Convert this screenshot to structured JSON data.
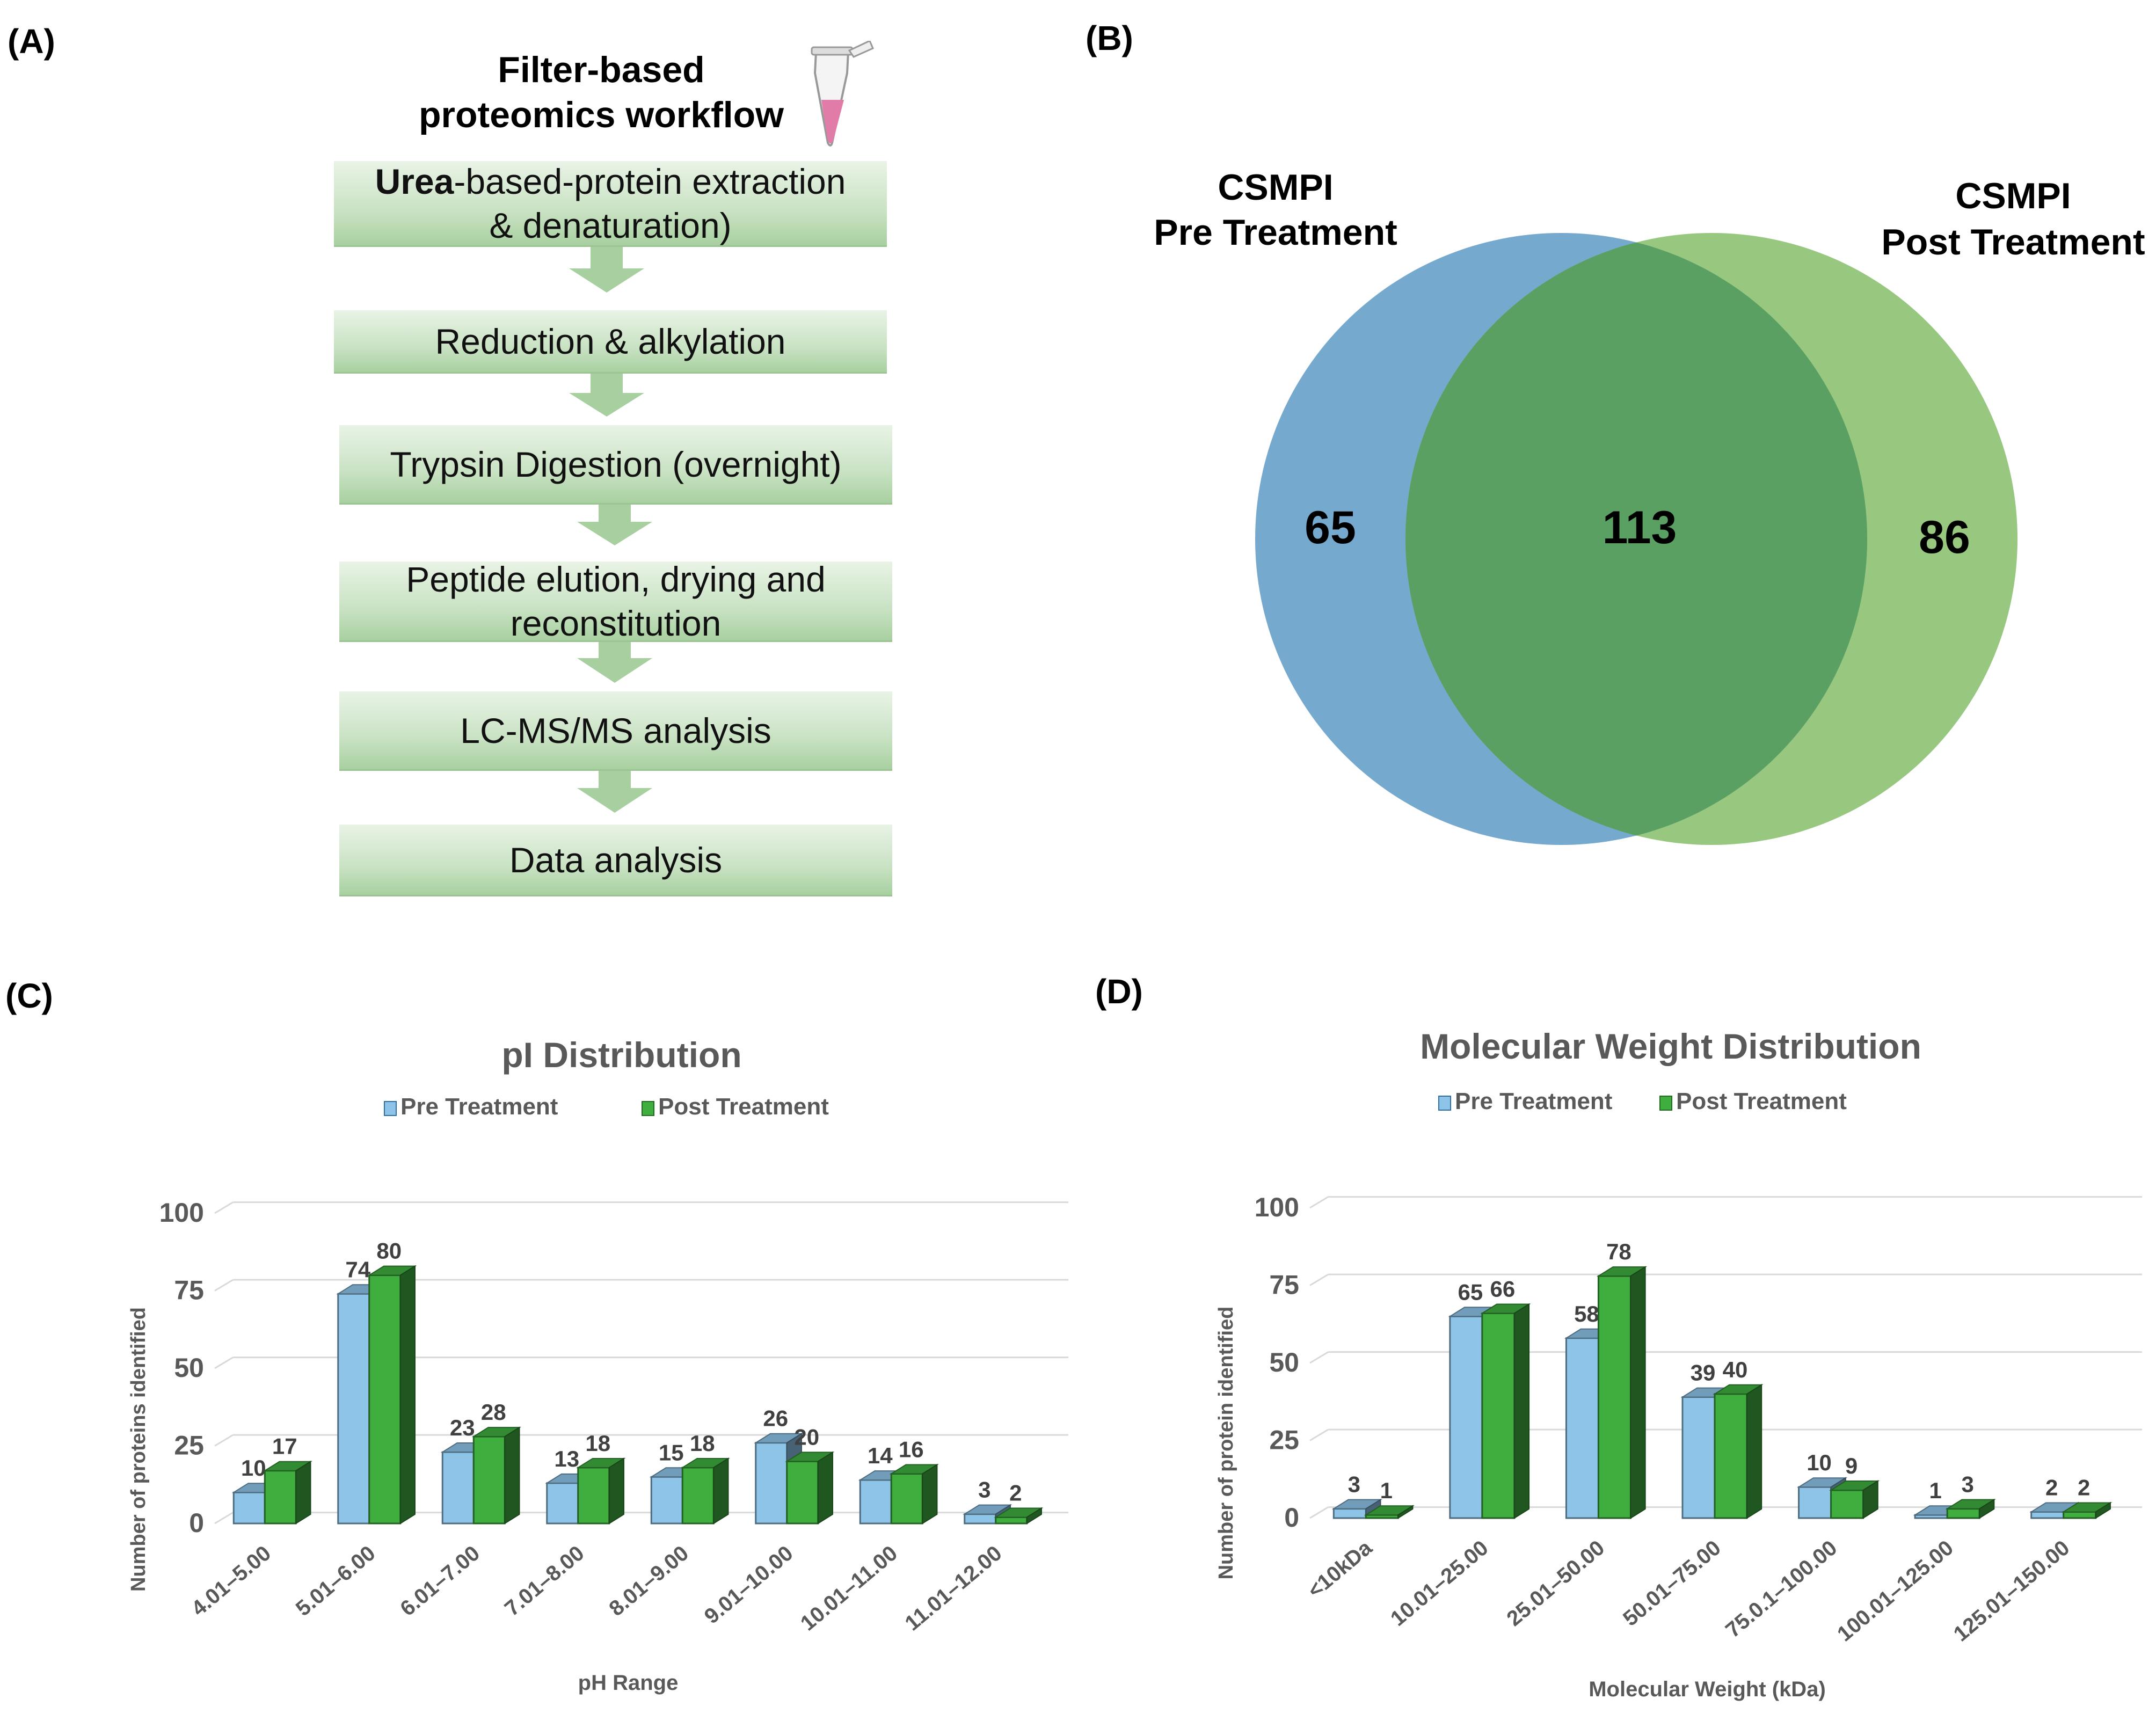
{
  "panel_labels": {
    "a": "(A)",
    "b": "(B)",
    "c": "(C)",
    "d": "(D)"
  },
  "workflow": {
    "title_line1": "Filter-based",
    "title_line2": "proteomics workflow",
    "steps": [
      {
        "bold": "Urea",
        "text": "-based-protein extraction",
        "line2": "& denaturation)"
      },
      {
        "bold": "",
        "text": "Reduction & alkylation",
        "line2": ""
      },
      {
        "bold": "",
        "text": "Trypsin Digestion (overnight)",
        "line2": ""
      },
      {
        "bold": "",
        "text": "Peptide elution, drying and",
        "line2": "reconstitution"
      },
      {
        "bold": "",
        "text": "LC-MS/MS analysis",
        "line2": ""
      },
      {
        "bold": "",
        "text": "Data analysis",
        "line2": ""
      }
    ],
    "colors": {
      "tube_liquid": "#e17ca8"
    }
  },
  "venn": {
    "pre_label_line1": "CSMPI",
    "pre_label_line2": "Pre Treatment",
    "post_label_line1": "CSMPI",
    "post_label_line2": "Post Treatment",
    "pre_only": "65",
    "shared": "113",
    "post_only": "86",
    "colors": {
      "pre": "#5e9ac6",
      "post": "#86bd6a"
    }
  },
  "chart_data": [
    {
      "type": "bar",
      "title": "pI Distribution",
      "xlabel": "pH Range",
      "ylabel": "Number of proteins identified",
      "ylim": [
        0,
        100
      ],
      "yticks": [
        "0",
        "25",
        "50",
        "75",
        "100"
      ],
      "categories": [
        "4.01–5.00",
        "5.01–6.00",
        "6.01–7.00",
        "7.01–8.00",
        "8.01–9.00",
        "9.01–10.00",
        "10.01–11.00",
        "11.01–12.00"
      ],
      "series": [
        {
          "name": "Pre Treatment",
          "color": "#8ec4e8",
          "values": [
            10,
            74,
            23,
            13,
            15,
            26,
            14,
            3
          ]
        },
        {
          "name": "Post Treatment",
          "color": "#3fae3f",
          "values": [
            17,
            80,
            28,
            18,
            18,
            20,
            16,
            2
          ]
        }
      ],
      "legend": "top"
    },
    {
      "type": "bar",
      "title": "Molecular Weight Distribution",
      "xlabel": "Molecular Weight (kDa)",
      "ylabel": "Number of protein identified",
      "ylim": [
        0,
        100
      ],
      "yticks": [
        "0",
        "25",
        "50",
        "75",
        "100"
      ],
      "categories": [
        "<10kDa",
        "10.01–25.00",
        "25.01–50.00",
        "50.01–75.00",
        "75.0.1–100.00",
        "100.01–125.00",
        "125.01–150.00"
      ],
      "series": [
        {
          "name": "Pre Treatment",
          "color": "#8ec4e8",
          "values": [
            3,
            65,
            58,
            39,
            10,
            1,
            2
          ]
        },
        {
          "name": "Post Treatment",
          "color": "#3fae3f",
          "values": [
            1,
            66,
            78,
            40,
            9,
            3,
            2
          ]
        }
      ],
      "legend": "top"
    }
  ]
}
